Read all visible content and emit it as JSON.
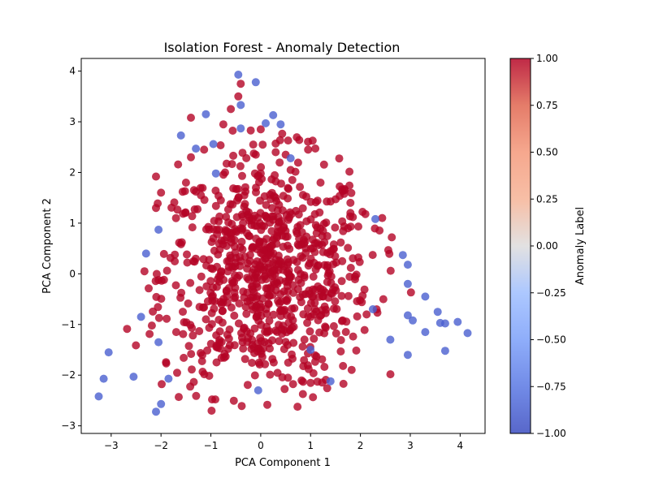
{
  "chart_data": {
    "type": "scatter",
    "title": "Isolation Forest - Anomaly Detection",
    "xlabel": "PCA Component 1",
    "ylabel": "PCA Component 2",
    "xlim": [
      -3.6,
      4.5
    ],
    "ylim": [
      -3.15,
      4.25
    ],
    "xticks": [
      -3,
      -2,
      -1,
      0,
      1,
      2,
      3,
      4
    ],
    "yticks": [
      -3,
      -2,
      -1,
      0,
      1,
      2,
      3,
      4
    ],
    "grid": false,
    "colormap": "coolwarm",
    "colorbar": {
      "label": "Anomaly Label",
      "range": [
        -1.0,
        1.0
      ],
      "ticks": [
        "1.00",
        "0.75",
        "0.50",
        "0.25",
        "0.00",
        "−0.25",
        "−0.50",
        "−0.75",
        "−1.00"
      ],
      "color_low": "#3b4cc0",
      "color_high": "#b40426"
    },
    "series": [
      {
        "label_value": -1,
        "color": "#4a5fd0",
        "points": [
          [
            -0.45,
            3.93
          ],
          [
            -0.1,
            3.78
          ],
          [
            -0.4,
            3.33
          ],
          [
            -1.1,
            3.15
          ],
          [
            0.25,
            3.13
          ],
          [
            0.1,
            2.97
          ],
          [
            0.4,
            2.95
          ],
          [
            -0.4,
            2.87
          ],
          [
            -1.6,
            2.73
          ],
          [
            -0.95,
            2.56
          ],
          [
            -1.3,
            2.47
          ],
          [
            0.6,
            2.28
          ],
          [
            -0.9,
            1.98
          ],
          [
            2.3,
            1.08
          ],
          [
            -2.05,
            0.87
          ],
          [
            -2.3,
            0.4
          ],
          [
            2.85,
            0.37
          ],
          [
            2.95,
            0.18
          ],
          [
            2.95,
            -0.2
          ],
          [
            3.3,
            -0.45
          ],
          [
            2.25,
            -0.7
          ],
          [
            3.55,
            -0.75
          ],
          [
            2.95,
            -0.82
          ],
          [
            3.05,
            -0.92
          ],
          [
            3.6,
            -0.97
          ],
          [
            3.7,
            -0.98
          ],
          [
            3.95,
            -0.95
          ],
          [
            4.15,
            -1.17
          ],
          [
            3.3,
            -1.15
          ],
          [
            2.6,
            -1.3
          ],
          [
            3.7,
            -1.52
          ],
          [
            2.95,
            -1.6
          ],
          [
            -3.05,
            -1.55
          ],
          [
            -2.05,
            -1.35
          ],
          [
            -2.55,
            -2.03
          ],
          [
            -3.15,
            -2.07
          ],
          [
            -1.85,
            -2.07
          ],
          [
            1.4,
            -2.12
          ],
          [
            -0.05,
            -2.3
          ],
          [
            -2.0,
            -2.57
          ],
          [
            -2.1,
            -2.72
          ],
          [
            -3.25,
            -2.42
          ],
          [
            1.0,
            -1.5
          ],
          [
            -2.4,
            -0.85
          ]
        ]
      },
      {
        "label_value": 1,
        "color": "#b40426",
        "points": [
          [
            -0.4,
            3.75
          ],
          [
            -0.45,
            3.5
          ],
          [
            -0.6,
            3.25
          ],
          [
            -1.4,
            3.08
          ],
          [
            -0.75,
            2.95
          ],
          [
            0.0,
            2.85
          ],
          [
            -0.2,
            2.83
          ],
          [
            0.55,
            2.63
          ],
          [
            -0.15,
            2.55
          ],
          [
            0.3,
            2.57
          ],
          [
            0.95,
            2.45
          ],
          [
            0.3,
            2.4
          ],
          [
            -0.1,
            2.35
          ],
          [
            0.5,
            2.35
          ],
          [
            -1.4,
            2.3
          ],
          [
            -0.55,
            2.33
          ],
          [
            0.6,
            2.05
          ],
          [
            -2.1,
            1.92
          ],
          [
            0.0,
            1.98
          ],
          [
            -1.5,
            1.8
          ],
          [
            1.2,
            1.8
          ],
          [
            -2.0,
            1.6
          ],
          [
            -1.2,
            1.55
          ],
          [
            1.8,
            1.4
          ],
          [
            -0.8,
            1.45
          ],
          [
            0.3,
            1.5
          ],
          [
            -2.1,
            1.3
          ],
          [
            1.8,
            1.2
          ],
          [
            2.1,
            1.18
          ],
          [
            -1.7,
            1.1
          ]
        ]
      }
    ],
    "red_cloud": {
      "note": "dense cluster of inlier points",
      "count": 820
    }
  }
}
